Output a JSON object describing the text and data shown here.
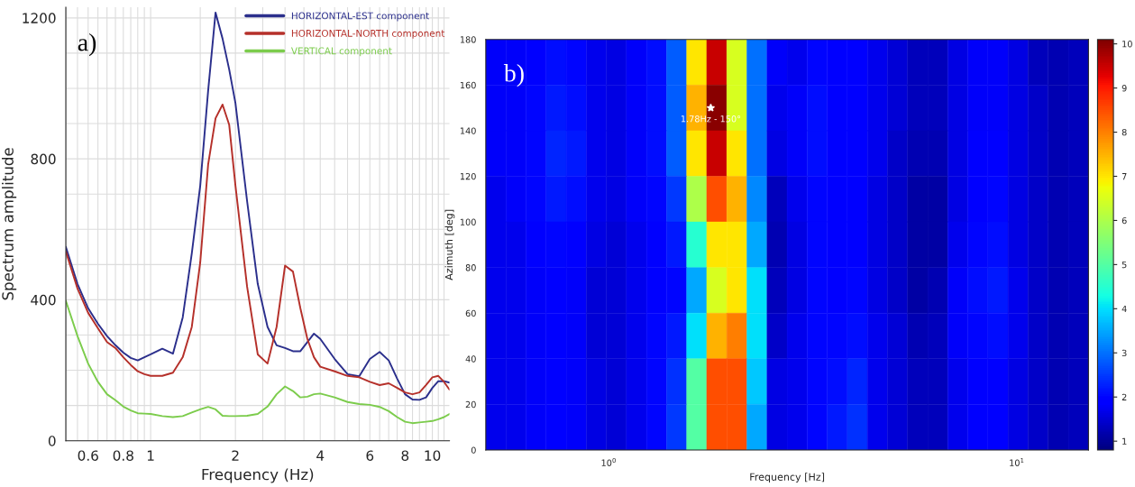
{
  "chart_data": [
    {
      "type": "line",
      "xlabel": "Frequency (Hz)",
      "ylabel": "Spectrum amplitude",
      "log": "x",
      "grid": true,
      "legend": "top right",
      "annotations": [
        "a)"
      ],
      "x": [
        0.5,
        0.55,
        0.6,
        0.65,
        0.7,
        0.75,
        0.8,
        0.85,
        0.9,
        0.95,
        1.0,
        1.1,
        1.2,
        1.3,
        1.4,
        1.5,
        1.6,
        1.7,
        1.8,
        1.9,
        2.0,
        2.2,
        2.4,
        2.6,
        2.8,
        3.0,
        3.2,
        3.4,
        3.6,
        3.8,
        4.0,
        4.5,
        5.0,
        5.5,
        6.0,
        6.5,
        7.0,
        7.5,
        8.0,
        8.5,
        9.0,
        9.5,
        10,
        10.5,
        11,
        11.5
      ],
      "series": [
        {
          "name": "HORIZONTAL-EST component",
          "color": "#2b2f8c",
          "values": [
            550,
            445,
            376,
            332,
            297,
            271,
            250,
            235,
            228,
            237,
            245,
            261,
            247,
            350,
            532,
            724,
            993,
            1215,
            1141,
            1054,
            958,
            680,
            445,
            323,
            271,
            263,
            254,
            254,
            280,
            304,
            289,
            232,
            189,
            183,
            232,
            252,
            228,
            176,
            132,
            117,
            116,
            123,
            150,
            169,
            169,
            165
          ]
        },
        {
          "name": "HORIZONTAL-NORTH component",
          "color": "#b5302a",
          "values": [
            537,
            432,
            363,
            319,
            280,
            263,
            237,
            215,
            197,
            189,
            184,
            184,
            193,
            237,
            323,
            506,
            784,
            915,
            954,
            897,
            724,
            437,
            245,
            219,
            323,
            497,
            480,
            376,
            289,
            237,
            210,
            197,
            184,
            180,
            167,
            158,
            163,
            150,
            137,
            132,
            137,
            158,
            180,
            184,
            167,
            145
          ]
        },
        {
          "name": "VERTICAL component",
          "color": "#7ccc4c",
          "values": [
            397,
            297,
            219,
            167,
            132,
            115,
            97,
            86,
            78,
            77,
            76,
            70,
            67,
            70,
            80,
            89,
            96,
            89,
            71,
            70,
            70,
            71,
            76,
            97,
            132,
            154,
            141,
            123,
            125,
            132,
            134,
            123,
            110,
            104,
            102,
            96,
            84,
            67,
            54,
            50,
            52,
            54,
            56,
            61,
            67,
            76
          ]
        }
      ],
      "xlim": [
        0.5,
        11.5
      ],
      "xticks": [
        {
          "value": 0.5,
          "label": null
        },
        {
          "value": 0.55,
          "label": null
        },
        0.6,
        {
          "value": 0.65,
          "label": null
        },
        {
          "value": 0.7,
          "label": null
        },
        {
          "value": 0.75,
          "label": null
        },
        0.8,
        {
          "value": 0.85,
          "label": null
        },
        {
          "value": 0.9,
          "label": null
        },
        {
          "value": 0.95,
          "label": null
        },
        1,
        {
          "value": 1.5,
          "label": null
        },
        2,
        {
          "value": 2.5,
          "label": null
        },
        {
          "value": 3,
          "label": null
        },
        {
          "value": 3.5,
          "label": null
        },
        4,
        {
          "value": 4.5,
          "label": null
        },
        {
          "value": 5,
          "label": null
        },
        {
          "value": 5.5,
          "label": null
        },
        6,
        {
          "value": 6.5,
          "label": null
        },
        {
          "value": 7,
          "label": null
        },
        {
          "value": 7.5,
          "label": null
        },
        8,
        {
          "value": 8.5,
          "label": null
        },
        {
          "value": 9,
          "label": null
        },
        {
          "value": 9.5,
          "label": null
        },
        10,
        {
          "value": 10.5,
          "label": null
        },
        {
          "value": 11,
          "label": null
        }
      ],
      "ylim": [
        0,
        1230
      ],
      "yticks": [
        0,
        {
          "value": 100,
          "label": null
        },
        {
          "value": 200,
          "label": null
        },
        {
          "value": 300,
          "label": null
        },
        400,
        {
          "value": 500,
          "label": null
        },
        {
          "value": 600,
          "label": null
        },
        {
          "value": 700,
          "label": null
        },
        800,
        {
          "value": 900,
          "label": null
        },
        {
          "value": 1000,
          "label": null
        },
        {
          "value": 1100,
          "label": null
        },
        1200
      ]
    },
    {
      "type": "heatmap",
      "xlabel": "Frequency [Hz]",
      "ylabel": "Azimuth [deg]",
      "log": "x",
      "annotations": [
        "b)",
        {
          "text": "1.78Hz - 150°",
          "x": 1.78,
          "y": 150
        }
      ],
      "x": [
        0.529,
        0.593,
        0.664,
        0.744,
        0.833,
        0.933,
        1.045,
        1.17,
        1.311,
        1.468,
        1.644,
        1.841,
        2.062,
        2.31,
        2.587,
        2.897,
        3.245,
        3.635,
        4.071,
        4.56,
        5.108,
        5.72,
        6.408,
        7.177,
        8.039,
        9.0,
        10.08,
        11.29,
        12.65,
        14.17
      ],
      "y": [
        170,
        150,
        130,
        110,
        90,
        70,
        50,
        30,
        10
      ],
      "cells": [
        [
          1.8,
          1.8,
          1.9,
          2.1,
          2.0,
          1.7,
          1.6,
          1.8,
          2.1,
          2.8,
          7.0,
          9.5,
          6.5,
          3.0,
          1.8,
          1.7,
          2.0,
          1.9,
          1.9,
          1.7,
          1.5,
          1.3,
          1.3,
          1.6,
          1.8,
          1.8,
          1.6,
          1.3,
          1.2,
          1.3
        ],
        [
          1.8,
          1.8,
          2.0,
          2.2,
          2.1,
          1.7,
          1.6,
          1.8,
          2.1,
          2.8,
          7.5,
          10.0,
          6.5,
          3.0,
          1.7,
          1.8,
          2.1,
          1.9,
          1.9,
          1.7,
          1.5,
          1.3,
          1.3,
          1.6,
          1.8,
          1.8,
          1.6,
          1.4,
          1.2,
          1.3
        ],
        [
          1.8,
          1.8,
          2.0,
          2.3,
          2.2,
          1.7,
          1.6,
          1.8,
          2.1,
          2.8,
          7.0,
          9.5,
          7.0,
          3.0,
          1.6,
          1.8,
          2.1,
          1.9,
          1.9,
          1.7,
          1.4,
          1.2,
          1.2,
          1.6,
          1.9,
          1.9,
          1.6,
          1.4,
          1.2,
          1.3
        ],
        [
          1.7,
          1.8,
          2.0,
          2.2,
          2.1,
          1.7,
          1.6,
          1.8,
          2.0,
          2.5,
          6.0,
          8.5,
          7.5,
          3.2,
          1.3,
          1.7,
          2.0,
          1.9,
          1.9,
          1.6,
          1.4,
          1.1,
          1.1,
          1.6,
          1.9,
          2.0,
          1.6,
          1.4,
          1.2,
          1.3
        ],
        [
          1.7,
          1.7,
          1.9,
          2.0,
          1.9,
          1.6,
          1.5,
          1.7,
          1.9,
          2.2,
          4.5,
          7.0,
          7.0,
          3.5,
          1.2,
          1.6,
          2.0,
          1.9,
          1.9,
          1.6,
          1.4,
          1.1,
          1.1,
          1.7,
          2.0,
          2.1,
          1.6,
          1.4,
          1.2,
          1.3
        ],
        [
          1.7,
          1.7,
          1.8,
          1.9,
          1.8,
          1.5,
          1.5,
          1.7,
          1.9,
          2.0,
          3.5,
          6.5,
          7.0,
          4.0,
          1.3,
          1.6,
          2.0,
          1.9,
          2.0,
          1.6,
          1.4,
          1.1,
          1.2,
          1.8,
          2.1,
          2.2,
          1.7,
          1.4,
          1.2,
          1.3
        ],
        [
          1.7,
          1.7,
          1.8,
          1.9,
          1.8,
          1.5,
          1.5,
          1.7,
          2.0,
          2.2,
          4.0,
          7.5,
          8.0,
          4.0,
          1.4,
          1.7,
          2.0,
          2.0,
          2.1,
          1.7,
          1.5,
          1.2,
          1.3,
          1.8,
          2.0,
          2.1,
          1.7,
          1.4,
          1.2,
          1.3
        ],
        [
          1.7,
          1.7,
          1.8,
          1.9,
          1.8,
          1.6,
          1.5,
          1.7,
          2.0,
          2.4,
          5.0,
          8.5,
          8.5,
          3.8,
          1.6,
          1.7,
          2.0,
          2.1,
          2.3,
          1.7,
          1.5,
          1.3,
          1.3,
          1.7,
          1.9,
          1.9,
          1.6,
          1.4,
          1.2,
          1.3
        ],
        [
          1.7,
          1.7,
          1.8,
          1.9,
          1.8,
          1.6,
          1.5,
          1.7,
          2.0,
          2.5,
          5.0,
          8.5,
          8.5,
          3.5,
          1.6,
          1.7,
          2.0,
          2.2,
          2.4,
          1.7,
          1.5,
          1.3,
          1.3,
          1.7,
          1.9,
          1.9,
          1.6,
          1.4,
          1.2,
          1.3
        ]
      ],
      "xlim": [
        0.5,
        15
      ],
      "xticks": [
        {
          "value": 1,
          "label": "10$^{0}$"
        },
        {
          "value": 10,
          "label": "10$^{1}$"
        }
      ],
      "ylim": [
        0,
        180
      ],
      "yticks": [
        0,
        20,
        40,
        60,
        80,
        100,
        120,
        140,
        160,
        180
      ],
      "clim": [
        0.8,
        10.1
      ],
      "cticks": [
        1,
        2,
        3,
        4,
        5,
        6,
        7,
        8,
        9,
        10
      ]
    }
  ]
}
